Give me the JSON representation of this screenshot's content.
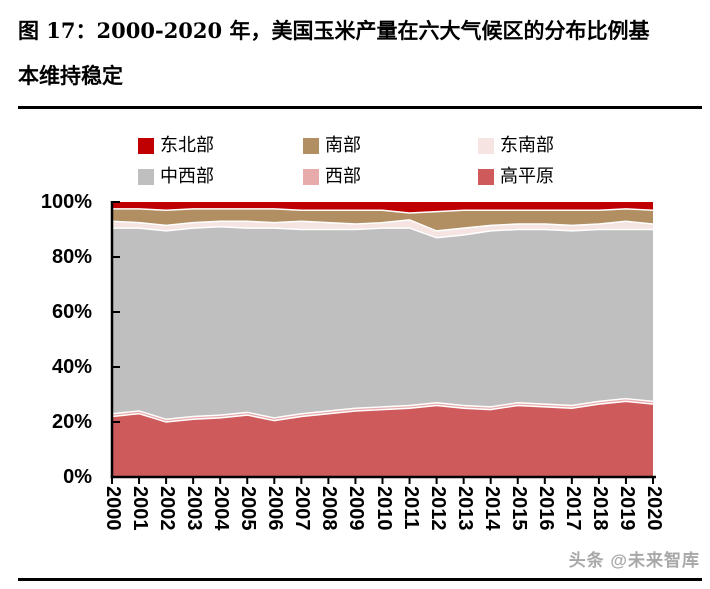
{
  "title_lines": [
    "图 17：2000-2020 年，美国玉米产量在六大气候区的分布比例基",
    "本维持稳定"
  ],
  "watermark": "头条 @未来智库",
  "legend": {
    "items": [
      {
        "label": "东北部",
        "color": "#C00000"
      },
      {
        "label": "南部",
        "color": "#B18F63"
      },
      {
        "label": "东南部",
        "color": "#F5E4E1"
      },
      {
        "label": "中西部",
        "color": "#BFBFBF"
      },
      {
        "label": "西部",
        "color": "#E8ABAC"
      },
      {
        "label": "高平原",
        "color": "#CE5A5C"
      }
    ]
  },
  "chart_data": {
    "type": "area",
    "stacked": true,
    "percent": true,
    "x": [
      "2000",
      "2001",
      "2002",
      "2003",
      "2004",
      "2005",
      "2006",
      "2007",
      "2008",
      "2009",
      "2010",
      "2011",
      "2012",
      "2013",
      "2014",
      "2015",
      "2016",
      "2017",
      "2018",
      "2019",
      "2020"
    ],
    "y_tick_labels": [
      "0%",
      "20%",
      "40%",
      "60%",
      "80%",
      "100%"
    ],
    "ylim": [
      0,
      100
    ],
    "grid": false,
    "legend_position": "top",
    "boundary_line_color": "#ffffff",
    "axis_color": "#000000",
    "series": [
      {
        "name": "高平原",
        "color": "#CE5A5C",
        "values": [
          22,
          23,
          20,
          21,
          21.5,
          22.5,
          20.5,
          22,
          23,
          24,
          24.5,
          25,
          26,
          25,
          24.5,
          26,
          25.5,
          25,
          26.5,
          27.5,
          26.5
        ]
      },
      {
        "name": "西部",
        "color": "#E8ABAC",
        "values": [
          1,
          1,
          1,
          1,
          1,
          1,
          1,
          1,
          1,
          1,
          1,
          1,
          1,
          1,
          1,
          1,
          1,
          1,
          1,
          1,
          1
        ]
      },
      {
        "name": "中西部",
        "color": "#BFBFBF",
        "values": [
          67.5,
          66.5,
          68.5,
          68.5,
          68.5,
          67,
          69,
          67,
          66,
          65,
          65,
          64.5,
          60,
          62,
          64,
          63,
          63.5,
          63.5,
          62.5,
          61.5,
          62.5
        ]
      },
      {
        "name": "东南部",
        "color": "#F5E4E1",
        "values": [
          2.5,
          2,
          2,
          2,
          2,
          2.5,
          2,
          3,
          2.5,
          2,
          2,
          3,
          2.5,
          2.5,
          2,
          2,
          2,
          2,
          2,
          3,
          2
        ]
      },
      {
        "name": "南部",
        "color": "#B18F63",
        "values": [
          4.5,
          5,
          5.5,
          5,
          4.5,
          4.5,
          5,
          4,
          4.5,
          5,
          4.5,
          2.5,
          7,
          6.5,
          5.5,
          5,
          5,
          5.5,
          5,
          4.5,
          5
        ]
      },
      {
        "name": "东北部",
        "color": "#C00000",
        "values": [
          2.5,
          2.5,
          3,
          2.5,
          2.5,
          2.5,
          2.5,
          3,
          3,
          3,
          3,
          4,
          3.5,
          3,
          3,
          3,
          3,
          3,
          3,
          2.5,
          3
        ]
      }
    ]
  }
}
